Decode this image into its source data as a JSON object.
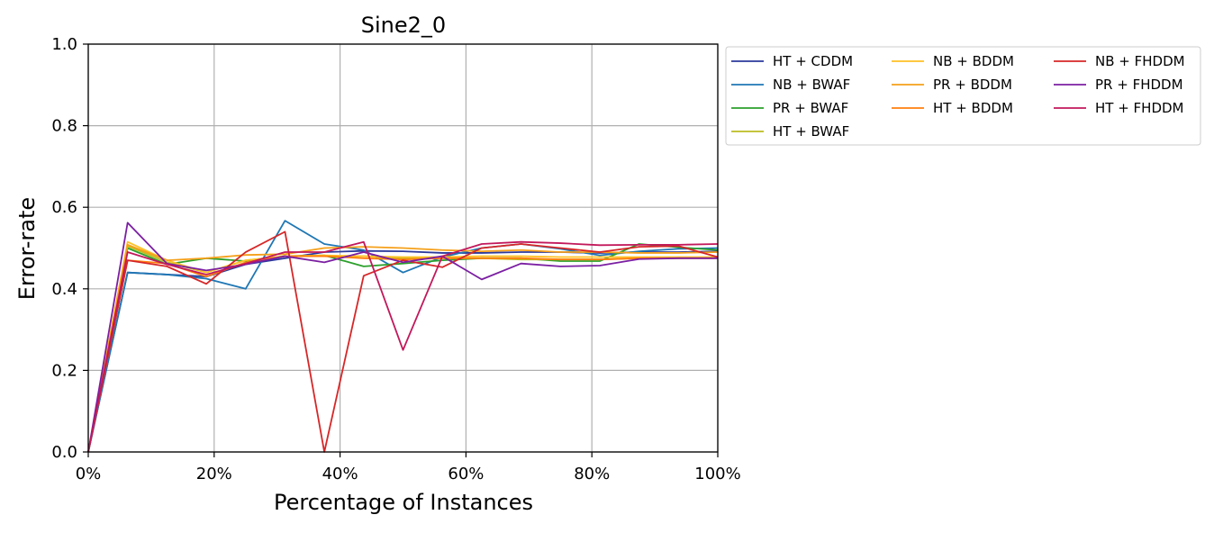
{
  "chart_data": {
    "type": "line",
    "title": "Sine2_0",
    "xlabel": "Percentage of Instances",
    "ylabel": "Error-rate",
    "xlim": [
      0,
      100
    ],
    "ylim": [
      0,
      1
    ],
    "x_ticks": [
      "0%",
      "20%",
      "40%",
      "60%",
      "80%",
      "100%"
    ],
    "x_tick_values": [
      0,
      20,
      40,
      60,
      80,
      100
    ],
    "y_ticks": [
      "0.0",
      "0.2",
      "0.4",
      "0.6",
      "0.8",
      "1.0"
    ],
    "y_tick_values": [
      0,
      0.2,
      0.4,
      0.6,
      0.8,
      1.0
    ],
    "grid": true,
    "legend_position": "outside-top-right",
    "legend_columns": 3,
    "x": [
      0,
      6.25,
      12.5,
      18.75,
      25,
      31.25,
      37.5,
      43.75,
      50,
      56.25,
      62.5,
      68.75,
      75,
      81.25,
      87.5,
      93.75,
      100
    ],
    "series": [
      {
        "name": "HT + CDDM",
        "color": "#2b3a9b",
        "values": [
          0,
          0.44,
          0.435,
          0.43,
          0.46,
          0.475,
          0.49,
          0.493,
          0.492,
          0.488,
          0.488,
          0.49,
          0.49,
          0.488,
          0.49,
          0.49,
          0.492
        ]
      },
      {
        "name": "NB + BWAF",
        "color": "#1f77b4",
        "values": [
          0,
          0.44,
          0.435,
          0.425,
          0.4,
          0.567,
          0.51,
          0.495,
          0.44,
          0.478,
          0.5,
          0.51,
          0.498,
          0.482,
          0.492,
          0.498,
          0.5
        ]
      },
      {
        "name": "PR + BWAF",
        "color": "#2ca02c",
        "values": [
          0,
          0.5,
          0.46,
          0.475,
          0.468,
          0.48,
          0.482,
          0.455,
          0.462,
          0.47,
          0.475,
          0.475,
          0.468,
          0.468,
          0.51,
          0.502,
          0.495
        ]
      },
      {
        "name": "HT + BWAF",
        "color": "#bcbd22",
        "values": [
          0,
          0.505,
          0.465,
          0.44,
          0.47,
          0.48,
          0.48,
          0.48,
          0.475,
          0.475,
          0.475,
          0.472,
          0.472,
          0.472,
          0.475,
          0.475,
          0.478
        ]
      },
      {
        "name": "NB + BDDM",
        "color": "#ffc125",
        "values": [
          0,
          0.515,
          0.47,
          0.44,
          0.47,
          0.48,
          0.482,
          0.48,
          0.478,
          0.478,
          0.48,
          0.48,
          0.478,
          0.478,
          0.478,
          0.478,
          0.478
        ]
      },
      {
        "name": "PR + BDDM",
        "color": "#f5a01a",
        "values": [
          0,
          0.508,
          0.47,
          0.475,
          0.483,
          0.485,
          0.5,
          0.503,
          0.5,
          0.495,
          0.492,
          0.495,
          0.49,
          0.49,
          0.488,
          0.488,
          0.49
        ]
      },
      {
        "name": "HT + BDDM",
        "color": "#ff7f0e",
        "values": [
          0,
          0.47,
          0.462,
          0.43,
          0.465,
          0.48,
          0.48,
          0.475,
          0.472,
          0.475,
          0.475,
          0.475,
          0.472,
          0.472,
          0.475,
          0.475,
          0.475
        ]
      },
      {
        "name": "NB + FHDDM",
        "color": "#d62728",
        "values": [
          0,
          0.47,
          0.455,
          0.412,
          0.49,
          0.54,
          0.0,
          0.432,
          0.47,
          0.453,
          0.5,
          0.51,
          0.5,
          0.49,
          0.503,
          0.505,
          0.478
        ]
      },
      {
        "name": "PR + FHDDM",
        "color": "#7b1fa2",
        "values": [
          0,
          0.562,
          0.462,
          0.445,
          0.46,
          0.48,
          0.465,
          0.49,
          0.465,
          0.48,
          0.423,
          0.462,
          0.455,
          0.457,
          0.473,
          0.475,
          0.475
        ]
      },
      {
        "name": "HT + FHDDM",
        "color": "#c2185b",
        "values": [
          0,
          0.49,
          0.46,
          0.435,
          0.462,
          0.49,
          0.49,
          0.515,
          0.25,
          0.48,
          0.51,
          0.515,
          0.512,
          0.507,
          0.508,
          0.508,
          0.51
        ]
      }
    ]
  }
}
